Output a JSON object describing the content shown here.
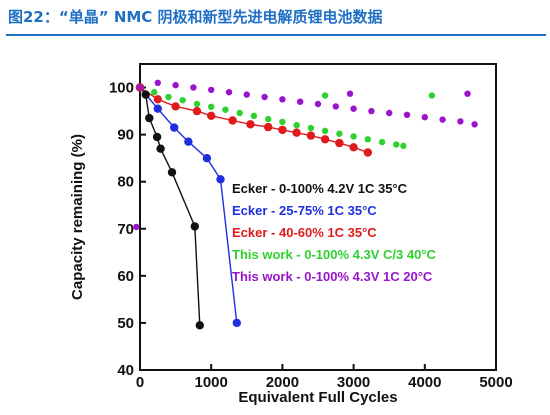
{
  "figure": {
    "title": "图22：“单晶” NMC 阴极和新型先进电解质锂电池数据"
  },
  "colors": {
    "title": "#1f6fc4",
    "black": "#111111",
    "blue": "#1e2fe0",
    "red": "#e01b1b",
    "green": "#2fd12f",
    "purple": "#9a14cc"
  },
  "chart_data": {
    "type": "scatter",
    "xlabel": "Equivalent Full Cycles",
    "ylabel": "Capacity remaining (%)",
    "xlim": [
      0,
      5000
    ],
    "ylim": [
      40,
      105
    ],
    "xticks": [
      0,
      1000,
      2000,
      3000,
      4000,
      5000
    ],
    "yticks": [
      40,
      50,
      60,
      70,
      80,
      90,
      100
    ],
    "grid": false,
    "legend_position": "center-right",
    "series": [
      {
        "name": "Ecker - 0-100% 4.2V 1C 35°C",
        "color": "#111111",
        "connected": true,
        "points": [
          [
            0,
            100
          ],
          [
            80,
            98.5
          ],
          [
            130,
            93.5
          ],
          [
            240,
            89.5
          ],
          [
            290,
            87
          ],
          [
            450,
            82
          ],
          [
            770,
            70.5
          ],
          [
            840,
            49.5
          ]
        ]
      },
      {
        "name": "Ecker - 25-75% 1C 35°C",
        "color": "#1e2fe0",
        "connected": true,
        "points": [
          [
            0,
            100
          ],
          [
            250,
            95.5
          ],
          [
            480,
            91.5
          ],
          [
            680,
            88.5
          ],
          [
            940,
            85
          ],
          [
            1130,
            80.5
          ],
          [
            1360,
            50
          ]
        ]
      },
      {
        "name": "Ecker - 40-60% 1C 35°C",
        "color": "#e01b1b",
        "connected": true,
        "points": [
          [
            0,
            100
          ],
          [
            250,
            97.5
          ],
          [
            500,
            96
          ],
          [
            800,
            95
          ],
          [
            1000,
            94
          ],
          [
            1300,
            93
          ],
          [
            1550,
            92.2
          ],
          [
            1800,
            91.6
          ],
          [
            2000,
            91
          ],
          [
            2200,
            90.4
          ],
          [
            2400,
            89.8
          ],
          [
            2600,
            89
          ],
          [
            2800,
            88.2
          ],
          [
            3000,
            87.3
          ],
          [
            3200,
            86.2
          ]
        ]
      },
      {
        "name": "This work - 0-100% 4.3V C/3 40°C",
        "color": "#2fd12f",
        "connected": false,
        "points": [
          [
            0,
            100
          ],
          [
            200,
            99
          ],
          [
            400,
            98
          ],
          [
            600,
            97.3
          ],
          [
            800,
            96.5
          ],
          [
            1000,
            95.9
          ],
          [
            1200,
            95.3
          ],
          [
            1400,
            94.6
          ],
          [
            1600,
            94
          ],
          [
            1800,
            93.3
          ],
          [
            2000,
            92.7
          ],
          [
            2200,
            92
          ],
          [
            2400,
            91.4
          ],
          [
            2600,
            90.8
          ],
          [
            2800,
            90.2
          ],
          [
            3000,
            89.6
          ],
          [
            3200,
            89
          ],
          [
            3400,
            88.4
          ],
          [
            3600,
            87.9
          ],
          [
            3700,
            87.6
          ],
          [
            2600,
            98.3
          ],
          [
            4100,
            98.3
          ]
        ]
      },
      {
        "name": "This work - 0-100% 4.3V 1C 20°C",
        "color": "#9a14cc",
        "connected": false,
        "points": [
          [
            0,
            100
          ],
          [
            250,
            101
          ],
          [
            500,
            100.5
          ],
          [
            750,
            100
          ],
          [
            1000,
            99.5
          ],
          [
            1250,
            99
          ],
          [
            1500,
            98.5
          ],
          [
            1750,
            98
          ],
          [
            2000,
            97.5
          ],
          [
            2250,
            97
          ],
          [
            2500,
            96.5
          ],
          [
            2750,
            96
          ],
          [
            3000,
            95.5
          ],
          [
            3250,
            95
          ],
          [
            3500,
            94.6
          ],
          [
            3750,
            94.2
          ],
          [
            4000,
            93.7
          ],
          [
            4250,
            93.2
          ],
          [
            4500,
            92.8
          ],
          [
            4700,
            92.2
          ],
          [
            2950,
            98.7
          ],
          [
            4600,
            98.7
          ],
          [
            -50,
            70.4
          ]
        ]
      }
    ]
  }
}
